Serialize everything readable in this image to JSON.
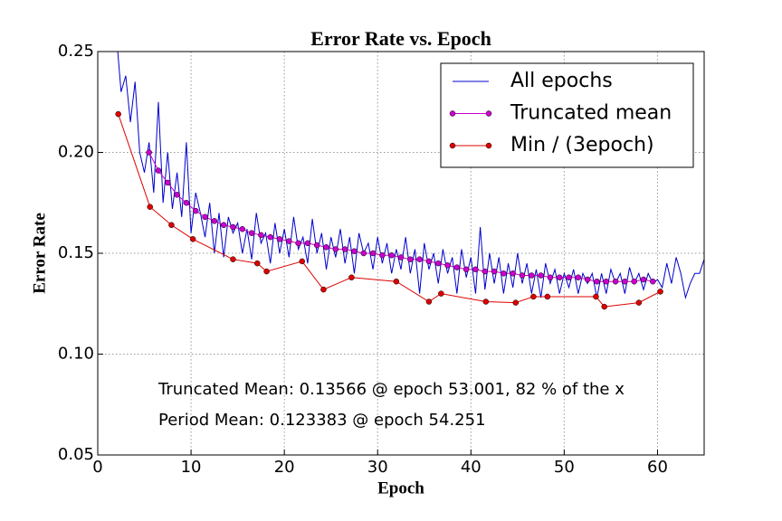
{
  "chart_data": {
    "type": "line",
    "title": "Error Rate vs. Epoch",
    "x_label": "Epoch",
    "y_label": "Error Rate",
    "xlim": [
      0,
      65
    ],
    "xticks": [
      0,
      10,
      20,
      30,
      40,
      50,
      60
    ],
    "ylim": [
      0.05,
      0.25
    ],
    "yticks": [
      0.05,
      {
        "value": 0.1,
        "label": "0.10"
      },
      0.15,
      {
        "value": 0.2,
        "label": "0.20"
      },
      0.25
    ],
    "grid": true,
    "legend": "upper right",
    "annotations": [
      "Truncated Mean: 0.13566 @ epoch 53.001, 82 % of the x",
      "Period Mean: 0.123383 @ epoch 54.251"
    ],
    "series": [
      {
        "name": "All epochs",
        "color": "#0000cc",
        "marker": false,
        "x": [
          2,
          2.5,
          3,
          3.5,
          4,
          4.5,
          5,
          5.5,
          6,
          6.5,
          7,
          7.5,
          8,
          8.5,
          9,
          9.5,
          10,
          10.5,
          11,
          11.5,
          12,
          12.5,
          13,
          13.5,
          14,
          14.5,
          15,
          15.5,
          16,
          16.5,
          17,
          17.5,
          18,
          18.5,
          19,
          19.5,
          20,
          20.5,
          21,
          21.5,
          22,
          22.5,
          23,
          23.5,
          24,
          24.5,
          25,
          25.5,
          26,
          26.5,
          27,
          27.5,
          28,
          28.5,
          29,
          29.5,
          30,
          30.5,
          31,
          31.5,
          32,
          32.5,
          33,
          33.5,
          34,
          34.5,
          35,
          35.5,
          36,
          36.5,
          37,
          37.5,
          38,
          38.5,
          39,
          39.5,
          40,
          40.5,
          41,
          41.5,
          42,
          42.5,
          43,
          43.5,
          44,
          44.5,
          45,
          45.5,
          46,
          46.5,
          47,
          47.5,
          48,
          48.5,
          49,
          49.5,
          50,
          50.5,
          51,
          51.5,
          52,
          52.5,
          53,
          53.5,
          54,
          54.5,
          55,
          55.5,
          56,
          56.5,
          57,
          57.5,
          58,
          58.5,
          59,
          59.5,
          60,
          60.5,
          61,
          61.5,
          62,
          62.5,
          63,
          63.5,
          64,
          64.5,
          65
        ],
        "values": [
          0.258,
          0.23,
          0.238,
          0.215,
          0.235,
          0.2,
          0.19,
          0.205,
          0.18,
          0.225,
          0.175,
          0.2,
          0.172,
          0.19,
          0.168,
          0.205,
          0.16,
          0.18,
          0.17,
          0.158,
          0.175,
          0.15,
          0.17,
          0.148,
          0.168,
          0.16,
          0.165,
          0.15,
          0.162,
          0.147,
          0.17,
          0.155,
          0.16,
          0.145,
          0.165,
          0.15,
          0.162,
          0.148,
          0.168,
          0.152,
          0.158,
          0.145,
          0.167,
          0.15,
          0.16,
          0.142,
          0.158,
          0.148,
          0.162,
          0.145,
          0.158,
          0.14,
          0.16,
          0.15,
          0.155,
          0.142,
          0.158,
          0.145,
          0.155,
          0.14,
          0.152,
          0.142,
          0.158,
          0.14,
          0.152,
          0.13,
          0.155,
          0.142,
          0.15,
          0.135,
          0.152,
          0.14,
          0.148,
          0.13,
          0.152,
          0.138,
          0.148,
          0.13,
          0.163,
          0.132,
          0.15,
          0.135,
          0.148,
          0.13,
          0.145,
          0.133,
          0.15,
          0.135,
          0.145,
          0.13,
          0.142,
          0.128,
          0.145,
          0.135,
          0.142,
          0.13,
          0.14,
          0.133,
          0.142,
          0.13,
          0.14,
          0.135,
          0.14,
          0.128,
          0.14,
          0.13,
          0.142,
          0.135,
          0.14,
          0.13,
          0.143,
          0.135,
          0.14,
          0.132,
          0.14,
          0.135,
          0.137,
          0.133,
          0.145,
          0.135,
          0.148,
          0.14,
          0.128,
          0.135,
          0.14,
          0.14,
          0.147
        ]
      },
      {
        "name": "Truncated mean",
        "color": "#cc00cc",
        "marker": true,
        "x": [
          5.5,
          6.5,
          7.5,
          8.5,
          9.5,
          10.5,
          11.5,
          12.5,
          13.5,
          14.5,
          15.5,
          16.5,
          17.5,
          18.5,
          19.5,
          20.5,
          21.5,
          22.5,
          23.5,
          24.5,
          25.5,
          26.5,
          27.5,
          28.5,
          29.5,
          30.5,
          31.5,
          32.5,
          33.5,
          34.5,
          35.5,
          36.5,
          37.5,
          38.5,
          39.5,
          40.5,
          41.5,
          42.5,
          43.5,
          44.5,
          45.5,
          46.5,
          47.5,
          48.5,
          49.5,
          50.5,
          51.5,
          52.5,
          53.5,
          54.5,
          55.5,
          56.5,
          57.5,
          58.5,
          59.5
        ],
        "values": [
          0.2,
          0.191,
          0.185,
          0.179,
          0.175,
          0.171,
          0.168,
          0.166,
          0.164,
          0.163,
          0.162,
          0.16,
          0.159,
          0.158,
          0.157,
          0.156,
          0.155,
          0.155,
          0.154,
          0.153,
          0.152,
          0.152,
          0.151,
          0.15,
          0.15,
          0.149,
          0.149,
          0.148,
          0.147,
          0.147,
          0.146,
          0.145,
          0.144,
          0.143,
          0.142,
          0.142,
          0.141,
          0.141,
          0.14,
          0.14,
          0.139,
          0.139,
          0.139,
          0.138,
          0.138,
          0.138,
          0.138,
          0.137,
          0.136,
          0.136,
          0.136,
          0.136,
          0.136,
          0.137,
          0.136
        ]
      },
      {
        "name": "Min / (3epoch)",
        "color": "#dd0000",
        "marker": true,
        "x": [
          2.2,
          5.6,
          7.9,
          10.2,
          14.5,
          17.1,
          18.1,
          21.9,
          24.2,
          27.2,
          32.0,
          35.5,
          36.8,
          41.6,
          44.8,
          46.7,
          48.2,
          53.4,
          54.3,
          58.0,
          60.3
        ],
        "values": [
          0.219,
          0.173,
          0.164,
          0.157,
          0.147,
          0.145,
          0.141,
          0.146,
          0.132,
          0.138,
          0.136,
          0.126,
          0.13,
          0.126,
          0.1255,
          0.1285,
          0.1285,
          0.1285,
          0.1235,
          0.1255,
          0.131
        ]
      }
    ]
  }
}
